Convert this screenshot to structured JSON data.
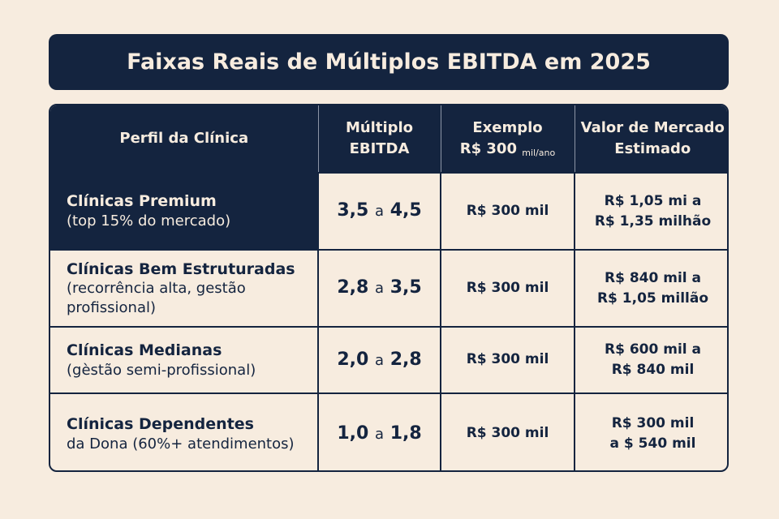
{
  "title": "Faixas Reais de Múltiplos EBITDA em 2025",
  "colors": {
    "background": "#f7ecdf",
    "navy": "#14243f"
  },
  "table": {
    "headers": {
      "profile": "Perfil da Clínica",
      "multiple_line1": "Múltiplo",
      "multiple_line2": "EBITDA",
      "example_line1": "Exemplo",
      "example_line2": "R$ 300",
      "example_unit": "mil/ano",
      "value_line1": "Valor de Mercado",
      "value_line2": "Estimado"
    },
    "rows": [
      {
        "name": "Clínicas Premium",
        "desc": "(top 15% do mercado)",
        "multiple_low": "3,5",
        "connector": "a",
        "multiple_high": "4,5",
        "example": "R$ 300 mil",
        "value_line1": "R$ 1,05 mi a",
        "value_line2": "R$ 1,35 milhão",
        "highlighted": true
      },
      {
        "name": "Clínicas Bem Estruturadas",
        "desc": "(recorrência alta, gestão profissional)",
        "multiple_low": "2,8",
        "connector": "a",
        "multiple_high": "3,5",
        "example": "R$ 300 mil",
        "value_line1": "R$ 840 mil a",
        "value_line2": "R$ 1,05 millão",
        "highlighted": false
      },
      {
        "name": "Clínicas Medianas",
        "desc": "(gèstão semi-profissional)",
        "multiple_low": "2,0",
        "connector": "a",
        "multiple_high": "2,8",
        "example": "R$ 300 mil",
        "value_line1": "R$ 600 mil a",
        "value_line2": "R$ 840 mil",
        "highlighted": false
      },
      {
        "name": "Clínicas Dependentes",
        "desc": "da Dona (60%+ atendimentos)",
        "multiple_low": "1,0",
        "connector": "a",
        "multiple_high": "1,8",
        "example": "R$ 300 mil",
        "value_line1": "R$ 300 mil",
        "value_line2": "a $ 540 mil",
        "highlighted": false
      }
    ]
  }
}
